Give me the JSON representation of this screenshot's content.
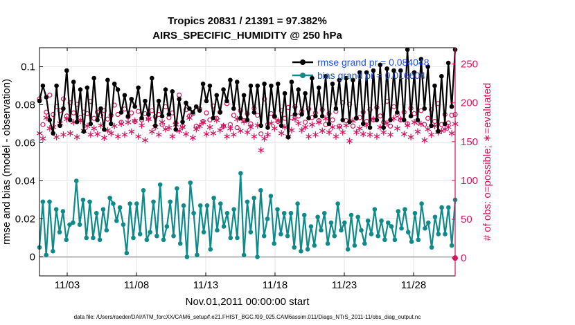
{
  "chart_data": {
    "type": "line",
    "title_line1": "Tropics 20831 / 21391 = 97.382%",
    "title_line2": "AIRS_SPECIFIC_HUMIDITY @ 250 hPa",
    "xlabel": "Nov.01,2011 00:00:00 start",
    "ylabel_left": "rmse and bias (model - observation)",
    "ylabel_right": "# of obs: o=possible; ∗=evaluated",
    "footer": "data file: /Users/raeder/DAI/ATM_forcXX/CAM6_setup/f.e21.FHIST_BGC.f09_025.CAM6assim.011/Diags_NTrS_2011-11/obs_diag_output.nc",
    "x_tick_labels": [
      "11/03",
      "11/08",
      "11/13",
      "11/18",
      "11/23",
      "11/28"
    ],
    "x_tick_values": [
      3,
      8,
      13,
      18,
      23,
      28
    ],
    "xlim": [
      1,
      31
    ],
    "ylim_left": [
      -0.01,
      0.11
    ],
    "y_left_ticks": [
      0,
      0.02,
      0.04,
      0.06,
      0.08,
      0.1
    ],
    "y_left_tick_labels": [
      "0",
      "0.02",
      "0.04",
      "0.06",
      "0.08",
      "0.1"
    ],
    "ylim_right": [
      -23,
      271
    ],
    "y_right_ticks": [
      0,
      50,
      100,
      150,
      200,
      250
    ],
    "y_right_tick_labels": [
      "0",
      "50",
      "100",
      "150",
      "200",
      "250"
    ],
    "colors": {
      "rmse": "#000000",
      "bias": "#0e8a89",
      "obs": "#d5135f",
      "axis_right": "#d5135f",
      "legend_text": "#1f4fe0",
      "zero_line": "#b4b4b4"
    },
    "legend": [
      {
        "label": "rmse grand pr = 0.084048",
        "series": "rmse"
      },
      {
        "label": "bias grand pr = 0.016604",
        "series": "bias"
      }
    ],
    "series": [
      {
        "name": "rmse",
        "values": [
          0.082,
          0.09,
          0.084,
          0.072,
          0.065,
          0.09,
          0.069,
          0.078,
          0.098,
          0.072,
          0.092,
          0.071,
          0.088,
          0.066,
          0.089,
          0.07,
          0.094,
          0.072,
          0.078,
          0.067,
          0.093,
          0.07,
          0.091,
          0.088,
          0.076,
          0.085,
          0.074,
          0.083,
          0.079,
          0.089,
          0.073,
          0.082,
          0.075,
          0.094,
          0.069,
          0.082,
          0.074,
          0.088,
          0.075,
          0.087,
          0.067,
          0.083,
          0.071,
          0.081,
          0.078,
          0.076,
          0.079,
          0.077,
          0.091,
          0.082,
          0.09,
          0.073,
          0.085,
          0.076,
          0.088,
          0.082,
          0.093,
          0.078,
          0.092,
          0.073,
          0.085,
          0.072,
          0.09,
          0.076,
          0.09,
          0.069,
          0.091,
          0.068,
          0.09,
          0.074,
          0.091,
          0.069,
          0.086,
          0.063,
          0.092,
          0.075,
          0.088,
          0.075,
          0.086,
          0.073,
          0.094,
          0.074,
          0.089,
          0.074,
          0.095,
          0.07,
          0.091,
          0.078,
          0.093,
          0.072,
          0.094,
          0.071,
          0.093,
          0.073,
          0.097,
          0.07,
          0.097,
          0.068,
          0.098,
          0.072,
          0.101,
          0.068,
          0.099,
          0.072,
          0.098,
          0.076,
          0.098,
          0.072,
          0.109,
          0.074,
          0.097,
          0.072,
          0.104,
          0.078,
          0.1,
          0.069,
          0.09,
          0.066,
          0.095,
          0.07,
          0.102,
          0.079,
          0.109
        ]
      },
      {
        "name": "bias",
        "values": [
          0.005,
          0.029,
          0.001,
          0.029,
          0.003,
          0.025,
          0.013,
          0.024,
          0.009,
          0.017,
          0.018,
          0.04,
          0.017,
          0.03,
          0.01,
          0.029,
          0.01,
          0.023,
          0.009,
          0.025,
          0.014,
          0.031,
          0.028,
          0.019,
          0.026,
          0.017,
          0.002,
          0.028,
          0.01,
          0.028,
          0.012,
          0.035,
          0.009,
          0.013,
          0.029,
          0.011,
          0.038,
          0.009,
          0.016,
          0.029,
          0.011,
          0.036,
          0.007,
          0.027,
          0.0,
          0.039,
          0.023,
          0.001,
          0.027,
          0.013,
          0.027,
          0.004,
          0.031,
          0.014,
          0.028,
          0.016,
          0.023,
          0.01,
          0.025,
          0.01,
          0.044,
          0.001,
          0.029,
          0.013,
          0.031,
          0.0,
          0.035,
          0.011,
          0.02,
          0.032,
          0.007,
          0.025,
          0.012,
          0.023,
          0.011,
          0.023,
          0.005,
          0.028,
          0.003,
          0.022,
          0.004,
          0.016,
          0.006,
          0.021,
          0.014,
          0.023,
          0.007,
          0.018,
          0.011,
          0.028,
          0.014,
          0.018,
          0.004,
          0.022,
          0.006,
          0.021,
          0.014,
          0.007,
          0.019,
          0.012,
          0.025,
          0.011,
          0.019,
          0.009,
          0.018,
          0.016,
          0.009,
          0.024,
          0.015,
          0.025,
          0.013,
          0.008,
          0.023,
          0.009,
          0.028,
          0.015,
          0.018,
          0.005,
          0.021,
          0.012,
          0.026,
          0.012,
          0.026,
          0.006,
          0.03
        ]
      },
      {
        "name": "obs_possible",
        "values": [
          205,
          172,
          188,
          210,
          185,
          195,
          190,
          205,
          183,
          200,
          187,
          198,
          181,
          188,
          186,
          202,
          180,
          188,
          184,
          190,
          179,
          184,
          197,
          185,
          175,
          192,
          182,
          187,
          176,
          189,
          178,
          186,
          180,
          190,
          182,
          185,
          172,
          195,
          181,
          187,
          174,
          210,
          170,
          191,
          183,
          186,
          170,
          192,
          176,
          187,
          178,
          196,
          180,
          188,
          170,
          199,
          172,
          184,
          168,
          190,
          177,
          186,
          173,
          193,
          184,
          160,
          205,
          172,
          186,
          182,
          176,
          190,
          180,
          194,
          181,
          195,
          183,
          189,
          175,
          192,
          181,
          187,
          177,
          191,
          172,
          186,
          178,
          189,
          170,
          200,
          177,
          198,
          170,
          180,
          181,
          188,
          176,
          191,
          178,
          194,
          183,
          175,
          202,
          170,
          195,
          185,
          178,
          188,
          173,
          193,
          186,
          175,
          190,
          172,
          180,
          191,
          176,
          199,
          172,
          185,
          174,
          184,
          185
        ]
      },
      {
        "name": "obs_evaluated",
        "values": [
          162,
          155,
          182,
          168,
          170,
          157,
          175,
          160,
          180,
          162,
          176,
          157,
          178,
          165,
          171,
          160,
          168,
          161,
          172,
          156,
          166,
          162,
          171,
          158,
          174,
          160,
          176,
          164,
          178,
          158,
          172,
          153,
          180,
          164,
          170,
          160,
          176,
          167,
          169,
          158,
          173,
          165,
          170,
          161,
          182,
          156,
          167,
          171,
          176,
          161,
          170,
          162,
          179,
          166,
          171,
          158,
          168,
          160,
          180,
          165,
          177,
          163,
          170,
          158,
          172,
          140,
          155,
          160,
          175,
          168,
          178,
          162,
          170,
          158,
          166,
          180,
          175,
          166,
          170,
          158,
          173,
          160,
          176,
          165,
          181,
          163,
          170,
          158,
          170,
          163,
          172,
          152,
          178,
          163,
          168,
          161,
          172,
          160,
          180,
          158,
          170,
          163,
          175,
          160,
          181,
          168,
          180,
          161,
          172,
          157,
          176,
          164,
          174,
          153,
          167,
          160,
          171,
          163,
          165,
          167,
          170,
          162,
          174
        ]
      }
    ]
  }
}
